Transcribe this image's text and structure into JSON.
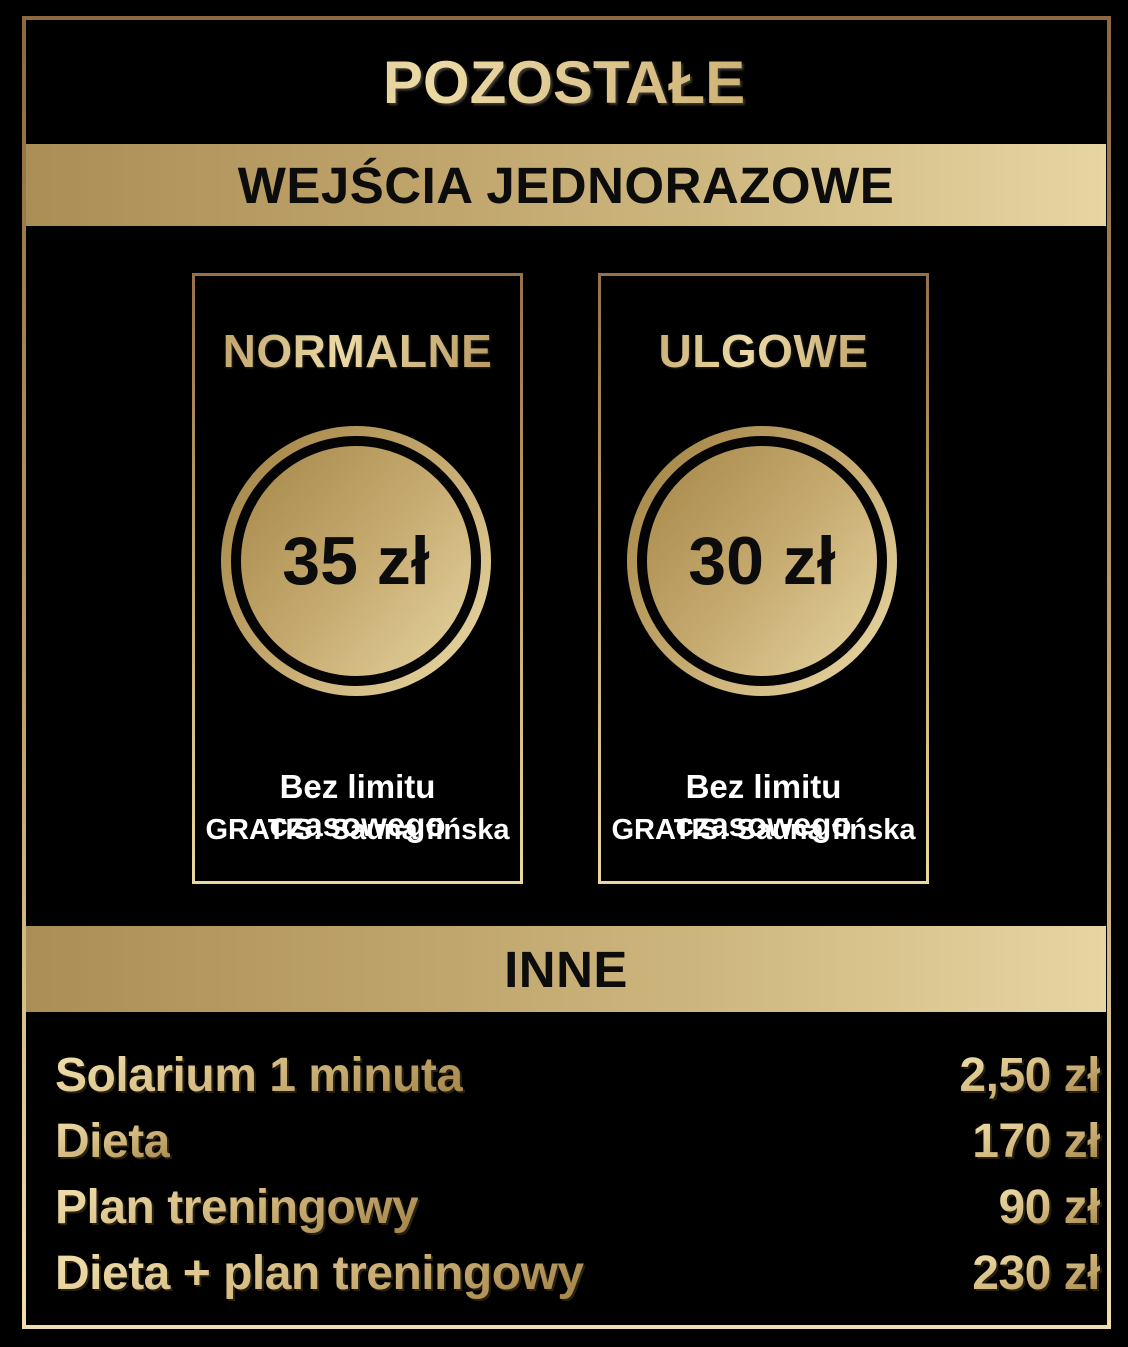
{
  "title": "POZOSTAŁE",
  "sections": {
    "wejscia": {
      "banner": "WEJŚCIA JEDNORAZOWE",
      "cards": [
        {
          "name": "NORMALNE",
          "price": "35 zł",
          "note1": "Bez limitu czasowego",
          "note2": "GRATIS: Sauna fińska"
        },
        {
          "name": "ULGOWE",
          "price": "30 zł",
          "note1": "Bez limitu czasowego",
          "note2": "GRATIS: Sauna fińska"
        }
      ]
    },
    "inne": {
      "banner": "INNE",
      "items": [
        {
          "label": "Solarium 1 minuta",
          "price": "2,50 zł"
        },
        {
          "label": "Dieta",
          "price": "170 zł"
        },
        {
          "label": "Plan treningowy",
          "price": "90 zł"
        },
        {
          "label": "Dieta + plan treningowy",
          "price": "230 zł"
        }
      ]
    }
  },
  "colors": {
    "background": "#000000",
    "gold_light": "#eedca8",
    "gold_mid": "#c3a76c",
    "gold_dark": "#a08142",
    "frame_top": "#8c6940",
    "frame_bottom": "#f0dfae",
    "banner_text": "#0c0c0c",
    "note_text": "#ffffff"
  }
}
